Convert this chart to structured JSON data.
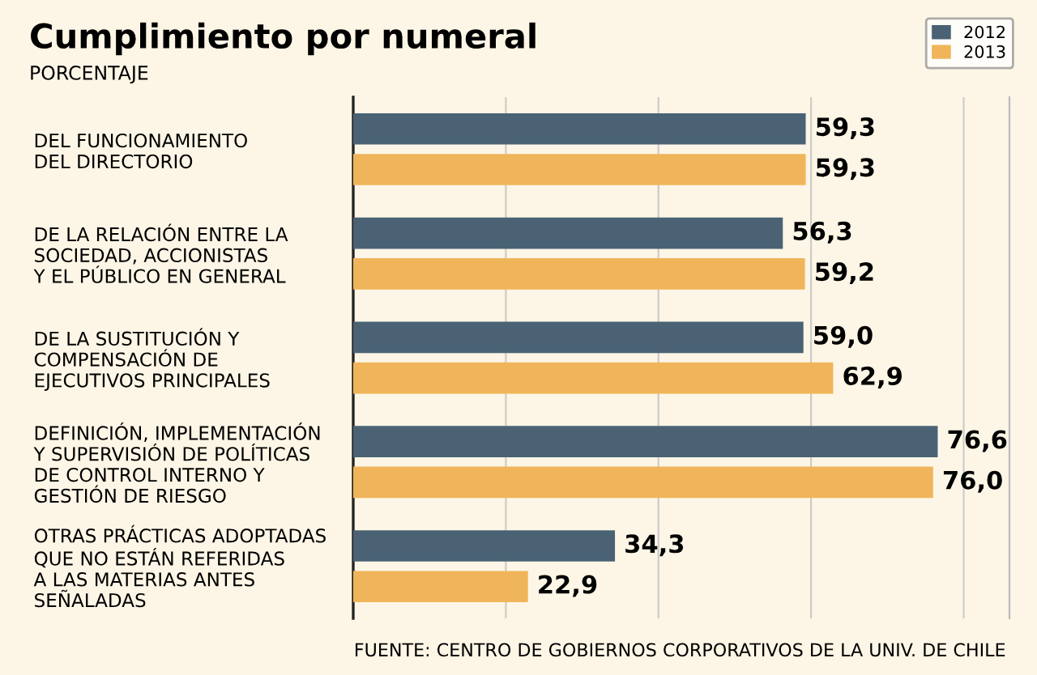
{
  "chart_data": {
    "type": "bar",
    "orientation": "horizontal",
    "title": "Cumplimiento por numeral",
    "subtitle": "PORCENTAJE",
    "categories": [
      "DEL FUNCIONAMIENTO\nDEL DIRECTORIO",
      "DE LA RELACIÓN ENTRE LA\nSOCIEDAD, ACCIONISTAS\nY EL PÚBLICO EN GENERAL",
      "DE LA SUSTITUCIÓN Y\nCOMPENSACIÓN DE\nEJECUTIVOS PRINCIPALES",
      "DEFINICIÓN, IMPLEMENTACIÓN\nY SUPERVISIÓN DE POLÍTICAS\nDE CONTROL INTERNO Y\nGESTIÓN DE RIESGO",
      "OTRAS PRÁCTICAS ADOPTADAS\nQUE NO ESTÁN REFERIDAS\nA LAS MATERIAS ANTES\nSEÑALADAS"
    ],
    "series": [
      {
        "name": "2012",
        "color": "#4a6274",
        "values": [
          59.3,
          56.3,
          59.0,
          76.6,
          34.3
        ],
        "value_labels": [
          "59,3",
          "56,3",
          "59,0",
          "76,6",
          "34,3"
        ]
      },
      {
        "name": "2013",
        "color": "#f0b55a",
        "values": [
          59.3,
          59.2,
          62.9,
          76.0,
          22.9
        ],
        "value_labels": [
          "59,3",
          "59,2",
          "62,9",
          "76,0",
          "22,9"
        ]
      }
    ],
    "xlim": [
      0,
      86
    ],
    "xticks": [
      {
        "value": 20,
        "label": null
      },
      {
        "value": 40,
        "label": null
      },
      {
        "value": 60,
        "label": null
      },
      {
        "value": 80,
        "label": null
      }
    ],
    "grid": "x",
    "tick_labels": "y",
    "legend": "top right",
    "annotations": [
      "FUENTE: CENTRO DE GOBIERNOS CORPORATIVOS DE LA UNIV. DE CHILE"
    ]
  }
}
